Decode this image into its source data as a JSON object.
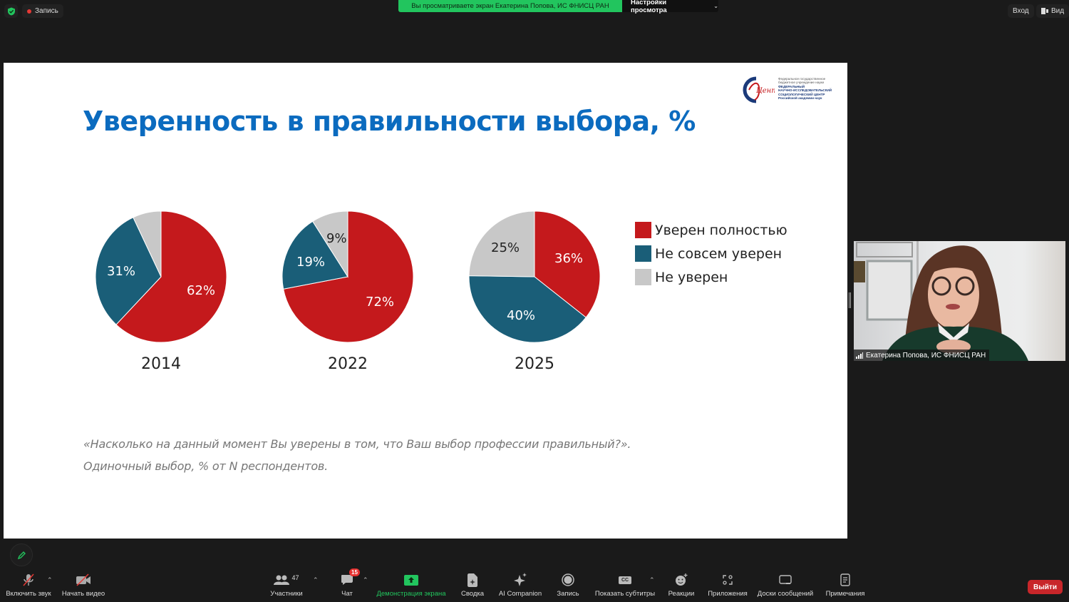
{
  "topbar": {
    "recording_label": "Запись",
    "share_banner": "Вы просматриваете экран Екатерина Попова, ИС ФНИСЦ РАН",
    "view_settings_label": "Настройки просмотра",
    "login_label": "Вход",
    "view_label": "Вид"
  },
  "slide": {
    "title": "Уверенность в правильности выбора, %",
    "logo": {
      "line1": "Федеральное государственное",
      "line2": "бюджетное учреждение науки",
      "line3": "ФЕДЕРАЛЬНЫЙ",
      "line4": "НАУЧНО-ИССЛЕДОВАТЕЛЬСКИЙ",
      "line5": "СОЦИОЛОГИЧЕСКИЙ ЦЕНТР",
      "line6": "Российской академии наук"
    },
    "note_line1": "«Насколько на данный момент Вы уверены в том, что Ваш выбор профессии правильный?».",
    "note_line2": "Одиночный выбор, % от N респондентов."
  },
  "colors": {
    "red": "#c4191c",
    "blue": "#1a5e78",
    "gray": "#c8c8c8",
    "title": "#0b6bbf"
  },
  "chart_data": {
    "type": "pie",
    "title": "Уверенность в правильности выбора, %",
    "legend": [
      "Уверен полностью",
      "Не совсем уверен",
      "Не уверен"
    ],
    "legend_position": "right",
    "categories": [
      "Уверен полностью",
      "Не совсем уверен",
      "Не уверен"
    ],
    "charts": [
      {
        "label": "2014",
        "values": [
          62,
          31,
          7
        ],
        "labels": [
          "62%",
          "31%",
          ""
        ]
      },
      {
        "label": "2022",
        "values": [
          72,
          19,
          9
        ],
        "labels": [
          "72%",
          "19%",
          "9%"
        ]
      },
      {
        "label": "2025",
        "values": [
          36,
          40,
          25
        ],
        "labels": [
          "36%",
          "40%",
          "25%"
        ]
      }
    ]
  },
  "video": {
    "participant_name": "Екатерина Попова, ИС ФНИСЦ РАН"
  },
  "toolbar": {
    "unmute_label": "Включить звук",
    "start_video_label": "Начать видео",
    "participants_label": "Участники",
    "participants_count": "47",
    "chat_label": "Чат",
    "chat_badge": "15",
    "share_label": "Демонстрация экрана",
    "summary_label": "Сводка",
    "ai_label": "AI Companion",
    "record_label": "Запись",
    "captions_label": "Показать субтитры",
    "captions_icon_text": "CC",
    "reactions_label": "Реакции",
    "apps_label": "Приложения",
    "whiteboards_label": "Доски сообщений",
    "notes_label": "Примечания",
    "exit_label": "Выйти"
  }
}
